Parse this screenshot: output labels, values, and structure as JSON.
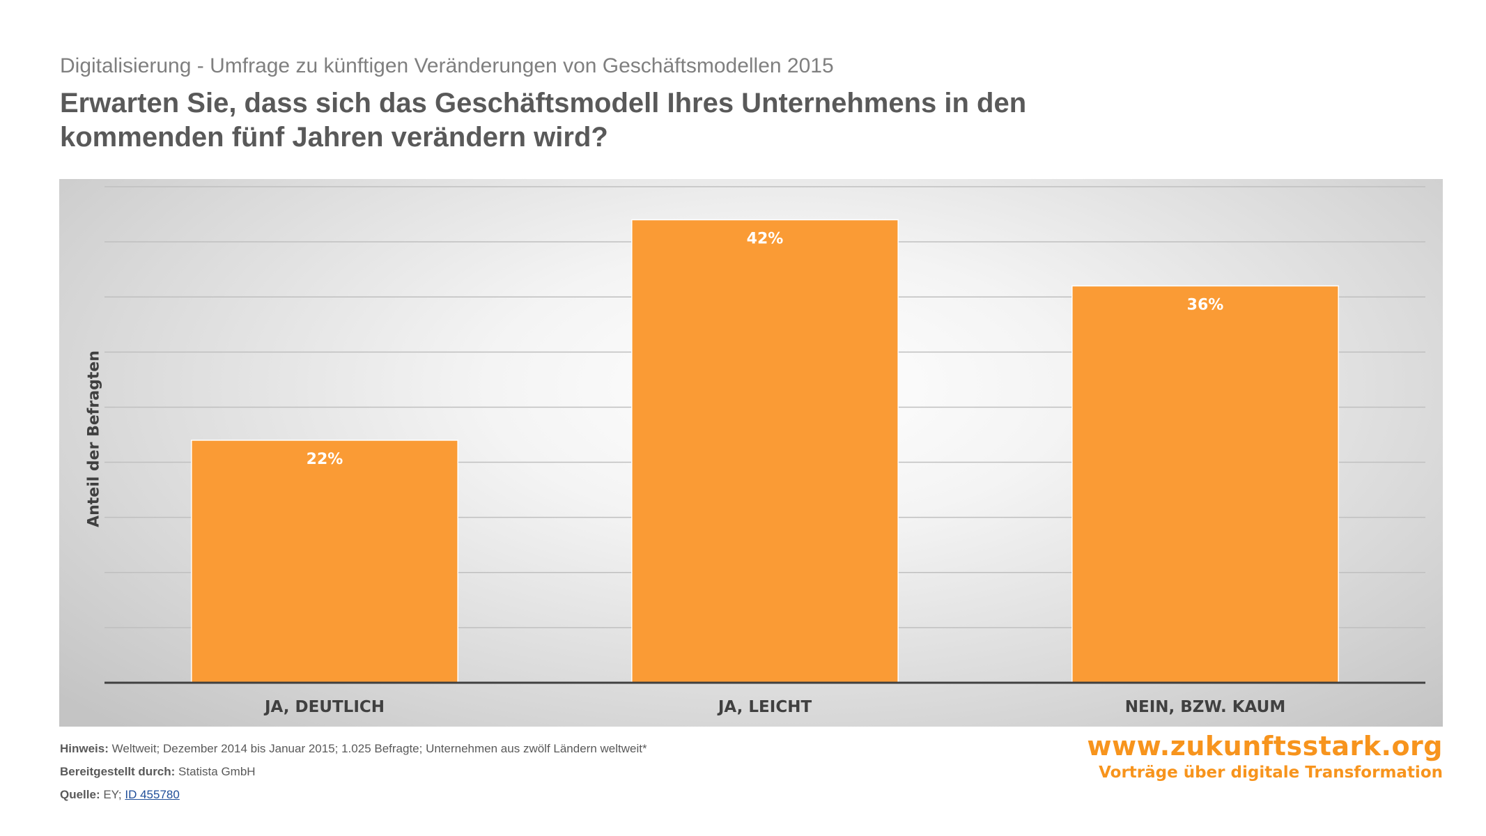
{
  "header": {
    "subtitle": "Digitalisierung - Umfrage zu künftigen Veränderungen von Geschäftsmodellen 2015",
    "title": "Erwarten Sie, dass sich das Geschäftsmodell Ihres Unternehmens in den kommenden fünf Jahren verändern wird?"
  },
  "chart_data": {
    "type": "bar",
    "categories": [
      "JA, DEUTLICH",
      "JA, LEICHT",
      "NEIN, BZW. KAUM"
    ],
    "values": [
      22,
      42,
      36
    ],
    "data_labels": [
      "22%",
      "42%",
      "36%"
    ],
    "xlabel": "",
    "ylabel": "Anteil der Befragten",
    "ylim": [
      0,
      45
    ],
    "grid": true,
    "grid_step": 5,
    "bar_color": "#fa9b35"
  },
  "notes": {
    "hinweis_label": "Hinweis:",
    "hinweis_text": " Weltweit; Dezember 2014 bis Januar 2015; 1.025 Befragte; Unternehmen aus zwölf Ländern weltweit*",
    "bereitgestellt_label": "Bereitgestellt durch:",
    "bereitgestellt_text": " Statista GmbH",
    "quelle_label": "Quelle:",
    "quelle_text": " EY; ",
    "quelle_link": "ID 455780"
  },
  "brand": {
    "url": "www.zukunftsstark.org",
    "tagline": "Vorträge über digitale Transformation",
    "color": "#f7941d"
  }
}
